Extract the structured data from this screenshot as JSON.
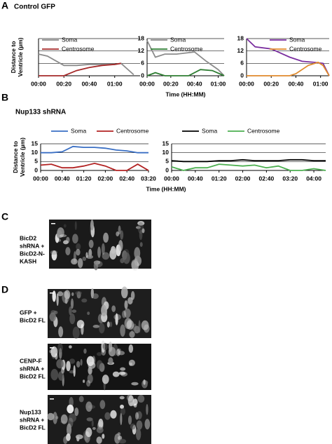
{
  "panels": {
    "a": {
      "label": "A",
      "title": "Control GFP"
    },
    "b": {
      "label": "B",
      "title": "Nup133 shRNA"
    },
    "c": {
      "label": "C",
      "captions": [
        [
          "BicD2",
          "shRNA +",
          "BicD2-N-",
          "KASH"
        ]
      ]
    },
    "d": {
      "label": "D",
      "captions": [
        [
          "GFP +",
          "BicD2 FL"
        ],
        [
          "CENP-F",
          "shRNA +",
          "BicD2 FL"
        ],
        [
          "Nup133",
          "shRNA +",
          "BicD2 FL"
        ]
      ]
    }
  },
  "chart_data": [
    {
      "type": "line",
      "ylabel": "Distance to Ventricle (µm)",
      "legend": "top-left",
      "grid": true,
      "show_ytick_labels": false,
      "xlim": [
        0,
        80
      ],
      "xticks": [
        {
          "value": 0,
          "label": "00:00"
        },
        {
          "value": 20,
          "label": "00:20"
        },
        {
          "value": 40,
          "label": "00:40"
        },
        {
          "value": 60,
          "label": "01:00"
        }
      ],
      "ylim": [
        0,
        18
      ],
      "yticks": [
        0,
        6,
        12,
        18
      ],
      "series": [
        {
          "name": "Soma",
          "color": "#8c8c8c",
          "x": [
            0,
            7,
            20,
            30,
            40,
            50,
            60,
            65,
            75
          ],
          "values": [
            10.5,
            9.5,
            5,
            5,
            5.5,
            5.5,
            5.5,
            6,
            0.5
          ]
        },
        {
          "name": "Centrosome",
          "color": "#a52a2a",
          "x": [
            0,
            20,
            30,
            40,
            50,
            60,
            65
          ],
          "values": [
            0,
            0,
            2.5,
            4,
            5,
            5.5,
            6
          ]
        }
      ]
    },
    {
      "type": "line",
      "xlabel": "Time (HH:MM)",
      "legend": "top-left",
      "grid": true,
      "show_ytick_labels": true,
      "xlim": [
        0,
        65
      ],
      "xticks": [
        {
          "value": 0,
          "label": "00:00"
        },
        {
          "value": 20,
          "label": "00:20"
        },
        {
          "value": 40,
          "label": "00:40"
        },
        {
          "value": 60,
          "label": "01:00"
        }
      ],
      "ylim": [
        0,
        18
      ],
      "yticks": [
        0,
        6,
        12,
        18
      ],
      "series": [
        {
          "name": "Soma",
          "color": "#8c8c8c",
          "x": [
            0,
            7,
            15,
            25,
            40,
            50,
            60,
            65
          ],
          "values": [
            17,
            9,
            10.5,
            10.5,
            11.5,
            7,
            3,
            0
          ]
        },
        {
          "name": "Centrosome",
          "color": "#2e7d32",
          "x": [
            0,
            7,
            15,
            35,
            45,
            55,
            65
          ],
          "values": [
            0,
            1.5,
            0,
            0,
            3,
            2.5,
            0
          ]
        }
      ]
    },
    {
      "type": "line",
      "legend": "top-right",
      "grid": true,
      "show_ytick_labels": true,
      "xlim": [
        0,
        67
      ],
      "xticks": [
        {
          "value": 0,
          "label": "00:00"
        },
        {
          "value": 20,
          "label": "00:20"
        },
        {
          "value": 40,
          "label": "00:40"
        },
        {
          "value": 60,
          "label": "01:00"
        }
      ],
      "ylim": [
        0,
        18
      ],
      "yticks": [
        0,
        6,
        12,
        18
      ],
      "series": [
        {
          "name": "Soma",
          "color": "#7b2fa0",
          "x": [
            0,
            7,
            20,
            35,
            45,
            55,
            62,
            67
          ],
          "values": [
            18,
            14,
            13,
            9,
            7,
            6.5,
            6,
            0
          ]
        },
        {
          "name": "Centrosome",
          "color": "#e08a2c",
          "x": [
            0,
            35,
            40,
            50,
            58,
            62,
            67
          ],
          "values": [
            0,
            0,
            1,
            5,
            6.5,
            5,
            0
          ]
        }
      ]
    },
    {
      "type": "line",
      "ylabel": "Distance to Ventricle (µm)",
      "legend": "top",
      "grid": true,
      "show_ytick_labels": true,
      "xlim": [
        0,
        200
      ],
      "xticks": [
        {
          "value": 0,
          "label": "00:00"
        },
        {
          "value": 40,
          "label": "00:40"
        },
        {
          "value": 80,
          "label": "01:20"
        },
        {
          "value": 120,
          "label": "02:00"
        },
        {
          "value": 160,
          "label": "02:40"
        },
        {
          "value": 200,
          "label": "03:20"
        }
      ],
      "ylim": [
        0,
        15
      ],
      "yticks": [
        0,
        5,
        10,
        15
      ],
      "series": [
        {
          "name": "Soma",
          "color": "#3a6fc4",
          "x": [
            0,
            20,
            40,
            60,
            80,
            100,
            120,
            140,
            160,
            180,
            200
          ],
          "values": [
            10,
            10,
            10.5,
            13.5,
            13,
            13,
            12.5,
            11.5,
            11,
            10,
            10
          ]
        },
        {
          "name": "Centrosome",
          "color": "#b22222",
          "x": [
            0,
            20,
            40,
            60,
            80,
            100,
            120,
            140,
            160,
            180,
            200
          ],
          "values": [
            3,
            3.5,
            1.5,
            1.5,
            2.5,
            4,
            2.5,
            0,
            0,
            3.5,
            0
          ]
        }
      ]
    },
    {
      "type": "line",
      "xlabel": "Time (HH:MM)",
      "legend": "top",
      "grid": true,
      "show_ytick_labels": true,
      "xlim": [
        0,
        260
      ],
      "xticks": [
        {
          "value": 0,
          "label": "00:00"
        },
        {
          "value": 40,
          "label": "00:40"
        },
        {
          "value": 80,
          "label": "01:20"
        },
        {
          "value": 120,
          "label": "02:00"
        },
        {
          "value": 160,
          "label": "02:40"
        },
        {
          "value": 200,
          "label": "03:20"
        },
        {
          "value": 240,
          "label": "04:00"
        }
      ],
      "ylim": [
        0,
        15
      ],
      "yticks": [
        0,
        5,
        10,
        15
      ],
      "series": [
        {
          "name": "Soma",
          "color": "#000000",
          "x": [
            0,
            20,
            40,
            60,
            80,
            100,
            120,
            140,
            160,
            180,
            200,
            220,
            240,
            260
          ],
          "values": [
            5.5,
            5,
            5,
            5,
            5.5,
            5.5,
            6,
            5.5,
            5.5,
            5.5,
            6,
            6,
            5.5,
            5.5
          ]
        },
        {
          "name": "Centrosome",
          "color": "#4caf50",
          "x": [
            0,
            20,
            40,
            60,
            80,
            100,
            120,
            140,
            160,
            180,
            200,
            220,
            240,
            260
          ],
          "values": [
            2,
            0,
            1.5,
            1.5,
            3.5,
            3,
            2.5,
            3,
            1.5,
            2.5,
            0,
            0,
            1,
            0
          ]
        }
      ]
    }
  ]
}
